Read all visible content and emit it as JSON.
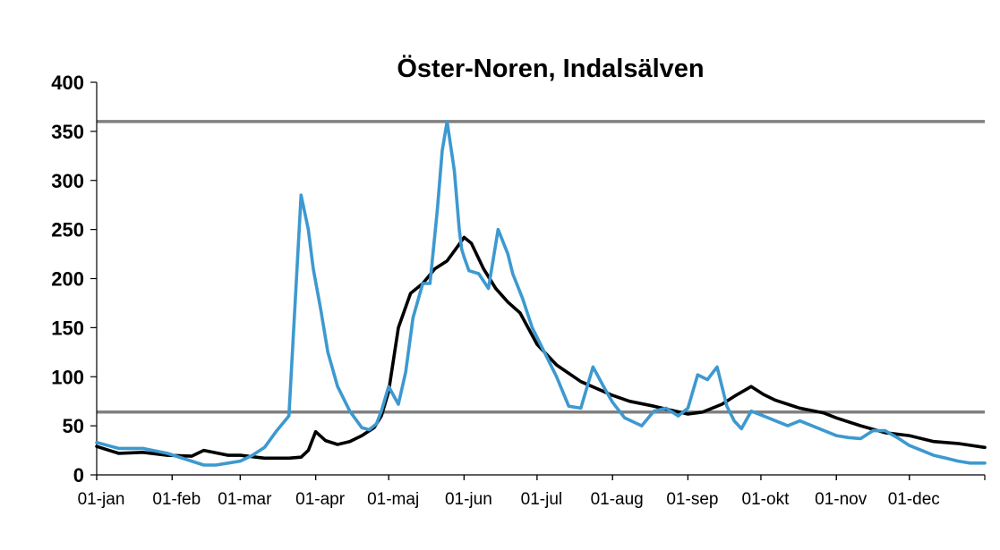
{
  "chart_data": {
    "type": "line",
    "title": "Öster-Noren,  Indalsälven",
    "xlabel": "",
    "ylabel": "",
    "ylim": [
      0,
      400
    ],
    "xlim": [
      1,
      366
    ],
    "y_ticks": [
      0,
      50,
      100,
      150,
      200,
      250,
      300,
      350,
      400
    ],
    "x_tick_labels": [
      "01-jan",
      "01-feb",
      "01-mar",
      "01-apr",
      "01-maj",
      "01-jun",
      "01-jul",
      "01-aug",
      "01-sep",
      "01-okt",
      "01-nov",
      "01-dec"
    ],
    "x_tick_days": [
      1,
      32,
      60,
      91,
      121,
      152,
      182,
      213,
      244,
      274,
      305,
      335
    ],
    "grid": false,
    "legend": "none",
    "reference_lines": [
      {
        "value": 360,
        "color": "#808080"
      },
      {
        "value": 64,
        "color": "#808080"
      }
    ],
    "series": [
      {
        "color": "#000000",
        "x": [
          1,
          10,
          20,
          30,
          40,
          45,
          55,
          60,
          70,
          80,
          85,
          88,
          91,
          95,
          100,
          105,
          110,
          115,
          118,
          121,
          125,
          130,
          135,
          140,
          145,
          150,
          152,
          155,
          160,
          165,
          170,
          175,
          182,
          190,
          200,
          213,
          220,
          230,
          244,
          250,
          258,
          263,
          270,
          275,
          280,
          290,
          300,
          305,
          315,
          325,
          335,
          345,
          355,
          366
        ],
        "values": [
          29,
          22,
          23,
          20,
          19,
          25,
          20,
          20,
          17,
          17,
          18,
          25,
          44,
          35,
          31,
          34,
          40,
          48,
          60,
          85,
          150,
          185,
          195,
          210,
          218,
          235,
          242,
          236,
          210,
          190,
          176,
          165,
          133,
          112,
          95,
          81,
          75,
          70,
          62,
          64,
          72,
          80,
          90,
          82,
          76,
          68,
          63,
          58,
          50,
          43,
          40,
          34,
          32,
          28
        ]
      },
      {
        "color": "#3d99d0",
        "x": [
          1,
          10,
          20,
          30,
          40,
          45,
          50,
          55,
          60,
          65,
          70,
          75,
          80,
          85,
          88,
          90,
          93,
          96,
          100,
          105,
          110,
          113,
          116,
          118,
          121,
          125,
          128,
          131,
          135,
          138,
          141,
          143,
          145,
          148,
          150,
          151,
          152,
          154,
          158,
          162,
          166,
          170,
          172,
          176,
          180,
          185,
          190,
          195,
          200,
          205,
          210,
          213,
          218,
          225,
          230,
          235,
          240,
          244,
          248,
          252,
          256,
          260,
          263,
          266,
          270,
          275,
          280,
          285,
          290,
          295,
          300,
          305,
          310,
          315,
          320,
          325,
          330,
          335,
          340,
          345,
          350,
          355,
          360,
          366
        ],
        "values": [
          33,
          27,
          27,
          22,
          14,
          10,
          10,
          12,
          14,
          20,
          28,
          45,
          60,
          285,
          250,
          210,
          170,
          125,
          90,
          65,
          48,
          46,
          52,
          65,
          90,
          72,
          105,
          160,
          195,
          195,
          270,
          330,
          360,
          310,
          250,
          230,
          222,
          208,
          205,
          190,
          250,
          225,
          205,
          180,
          150,
          125,
          100,
          70,
          68,
          110,
          87,
          74,
          58,
          50,
          65,
          68,
          60,
          68,
          102,
          97,
          110,
          70,
          55,
          47,
          65,
          60,
          55,
          50,
          55,
          50,
          45,
          40,
          38,
          37,
          45,
          45,
          38,
          30,
          25,
          20,
          17,
          14,
          12,
          12
        ]
      }
    ]
  }
}
